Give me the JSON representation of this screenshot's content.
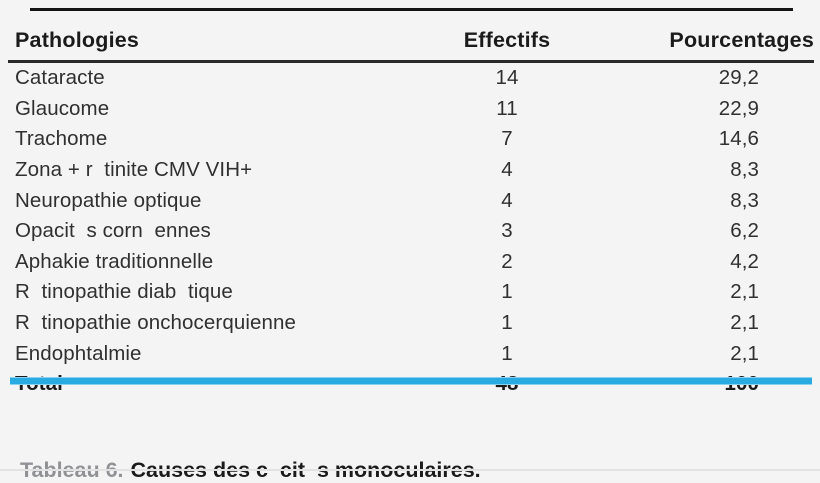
{
  "table": {
    "columns": [
      "Pathologies",
      "Effectifs",
      "Pourcentages"
    ],
    "rows": [
      {
        "p": "Cataracte",
        "e": "14",
        "pct": "29,2"
      },
      {
        "p": "Glaucome",
        "e": "11",
        "pct": "22,9"
      },
      {
        "p": "Trachome",
        "e": "7",
        "pct": "14,6"
      },
      {
        "p": "Zona + r  tinite CMV VIH+",
        "e": "4",
        "pct": "8,3"
      },
      {
        "p": "Neuropathie optique",
        "e": "4",
        "pct": "8,3"
      },
      {
        "p": "Opacit  s corn  ennes",
        "e": "3",
        "pct": "6,2"
      },
      {
        "p": "Aphakie traditionnelle",
        "e": "2",
        "pct": "4,2"
      },
      {
        "p": "R  tinopathie diab  tique",
        "e": "1",
        "pct": "2,1"
      },
      {
        "p": "R  tinopathie onchocerquienne",
        "e": "1",
        "pct": "2,1"
      },
      {
        "p": "Endophtalmie",
        "e": "1",
        "pct": "2,1"
      }
    ],
    "total": {
      "label": "Total",
      "e": "48",
      "pct": "100"
    }
  },
  "caption": {
    "label": "Tableau 6.",
    "text": "Causes des c  cit  s monoculaires."
  },
  "colors": {
    "accent_rule": "#29abe2",
    "caption_label": "#909295",
    "text": "#303030",
    "background": "#f5f4f5"
  },
  "chart_data": {
    "type": "table",
    "title": "Tableau 6. Causes des c  cit  s monoculaires.",
    "columns": [
      "Pathologies",
      "Effectifs",
      "Pourcentages"
    ],
    "categories": [
      "Cataracte",
      "Glaucome",
      "Trachome",
      "Zona + r  tinite CMV VIH+",
      "Neuropathie optique",
      "Opacit  s corn  ennes",
      "Aphakie traditionnelle",
      "R  tinopathie diab  tique",
      "R  tinopathie onchocerquienne",
      "Endophtalmie",
      "Total"
    ],
    "series": [
      {
        "name": "Effectifs",
        "values": [
          14,
          11,
          7,
          4,
          4,
          3,
          2,
          1,
          1,
          1,
          48
        ]
      },
      {
        "name": "Pourcentages",
        "values": [
          29.2,
          22.9,
          14.6,
          8.3,
          8.3,
          6.2,
          4.2,
          2.1,
          2.1,
          2.1,
          100
        ]
      }
    ]
  }
}
